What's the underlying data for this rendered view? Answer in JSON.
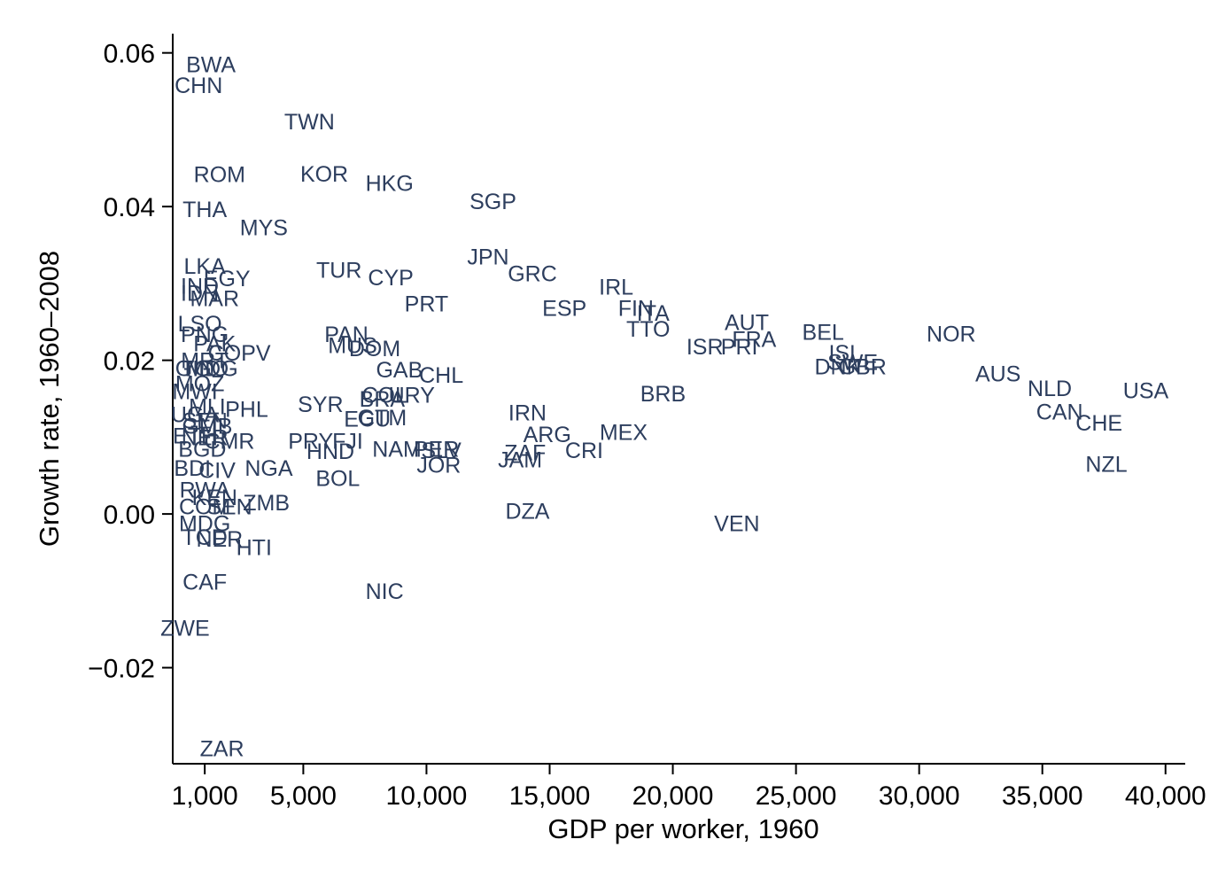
{
  "colors": {
    "marker_label": "#2d3e5e",
    "axis": "#000000"
  },
  "chart_data": {
    "type": "scatter",
    "marker": "country-code-labels",
    "xlabel": "GDP per worker, 1960",
    "ylabel": "Growth rate, 1960–2008",
    "xlim": [
      -300,
      40800
    ],
    "ylim": [
      -0.0325,
      0.0625
    ],
    "xticks": [
      1000,
      5000,
      10000,
      15000,
      20000,
      25000,
      30000,
      35000,
      40000
    ],
    "xtick_labels": [
      "1,000",
      "5,000",
      "10,000",
      "15,000",
      "20,000",
      "25,000",
      "30,000",
      "35,000",
      "40,000"
    ],
    "yticks": [
      -0.02,
      0.0,
      0.02,
      0.04,
      0.06
    ],
    "ytick_labels": [
      "−0.02",
      "0.00",
      "0.02",
      "0.04",
      "0.06"
    ],
    "grid": false,
    "legend": false,
    "points": [
      {
        "label": "BWA",
        "x": 1250,
        "y": 0.0585
      },
      {
        "label": "CHN",
        "x": 750,
        "y": 0.0558
      },
      {
        "label": "TWN",
        "x": 5250,
        "y": 0.0511
      },
      {
        "label": "ROM",
        "x": 1600,
        "y": 0.0442
      },
      {
        "label": "KOR",
        "x": 5850,
        "y": 0.0443
      },
      {
        "label": "HKG",
        "x": 8500,
        "y": 0.0431
      },
      {
        "label": "SGP",
        "x": 12700,
        "y": 0.0407
      },
      {
        "label": "THA",
        "x": 1000,
        "y": 0.0397
      },
      {
        "label": "MYS",
        "x": 3400,
        "y": 0.0373
      },
      {
        "label": "JPN",
        "x": 12500,
        "y": 0.0335
      },
      {
        "label": "LKA",
        "x": 1000,
        "y": 0.0323
      },
      {
        "label": "TUR",
        "x": 6450,
        "y": 0.0318
      },
      {
        "label": "GRC",
        "x": 14300,
        "y": 0.0313
      },
      {
        "label": "CYP",
        "x": 8550,
        "y": 0.0308
      },
      {
        "label": "IRL",
        "x": 17700,
        "y": 0.0296
      },
      {
        "label": "EGY",
        "x": 1900,
        "y": 0.0307
      },
      {
        "label": "IND",
        "x": 800,
        "y": 0.0297
      },
      {
        "label": "IDN",
        "x": 800,
        "y": 0.0288
      },
      {
        "label": "MAR",
        "x": 1400,
        "y": 0.0281
      },
      {
        "label": "PRT",
        "x": 10000,
        "y": 0.0274
      },
      {
        "label": "ESP",
        "x": 15600,
        "y": 0.0268
      },
      {
        "label": "FIN",
        "x": 18500,
        "y": 0.0268
      },
      {
        "label": "ITA",
        "x": 19200,
        "y": 0.0262
      },
      {
        "label": "LSO",
        "x": 800,
        "y": 0.0248
      },
      {
        "label": "AUT",
        "x": 23000,
        "y": 0.025
      },
      {
        "label": "PNG",
        "x": 1000,
        "y": 0.0234
      },
      {
        "label": "PAN",
        "x": 6750,
        "y": 0.0234
      },
      {
        "label": "TTO",
        "x": 19000,
        "y": 0.0241
      },
      {
        "label": "BEL",
        "x": 26100,
        "y": 0.0237
      },
      {
        "label": "NOR",
        "x": 31300,
        "y": 0.0235
      },
      {
        "label": "FRA",
        "x": 23300,
        "y": 0.0228
      },
      {
        "label": "PAK",
        "x": 1400,
        "y": 0.0222
      },
      {
        "label": "MUS",
        "x": 7000,
        "y": 0.022
      },
      {
        "label": "DOM",
        "x": 7900,
        "y": 0.0216
      },
      {
        "label": "COPV",
        "x": 2400,
        "y": 0.021
      },
      {
        "label": "ISR",
        "x": 21300,
        "y": 0.0218
      },
      {
        "label": "PRI",
        "x": 22700,
        "y": 0.0218
      },
      {
        "label": "ISL",
        "x": 27000,
        "y": 0.021
      },
      {
        "label": "SWE",
        "x": 27300,
        "y": 0.0198
      },
      {
        "label": "DNK",
        "x": 26700,
        "y": 0.0192
      },
      {
        "label": "GBR",
        "x": 27700,
        "y": 0.0192
      },
      {
        "label": "MRT",
        "x": 1000,
        "y": 0.02
      },
      {
        "label": "GAB",
        "x": 8900,
        "y": 0.0188
      },
      {
        "label": "GIN",
        "x": 600,
        "y": 0.019
      },
      {
        "label": "TGO",
        "x": 1000,
        "y": 0.019
      },
      {
        "label": "MDG",
        "x": 1300,
        "y": 0.019
      },
      {
        "label": "CHL",
        "x": 10600,
        "y": 0.0181
      },
      {
        "label": "AUS",
        "x": 33200,
        "y": 0.0183
      },
      {
        "label": "MOZ",
        "x": 800,
        "y": 0.017
      },
      {
        "label": "NLD",
        "x": 35300,
        "y": 0.0164
      },
      {
        "label": "USA",
        "x": 39200,
        "y": 0.0161
      },
      {
        "label": "MWI",
        "x": 600,
        "y": 0.016
      },
      {
        "label": "BRB",
        "x": 19600,
        "y": 0.0157
      },
      {
        "label": "COL",
        "x": 8300,
        "y": 0.0155
      },
      {
        "label": "URY",
        "x": 9400,
        "y": 0.0155
      },
      {
        "label": "BRA",
        "x": 8200,
        "y": 0.015
      },
      {
        "label": "SYR",
        "x": 5700,
        "y": 0.0143
      },
      {
        "label": "MLI",
        "x": 1100,
        "y": 0.014
      },
      {
        "label": "PHL",
        "x": 2700,
        "y": 0.0137
      },
      {
        "label": "IRN",
        "x": 14100,
        "y": 0.0132
      },
      {
        "label": "CAN",
        "x": 35700,
        "y": 0.0133
      },
      {
        "label": "CHE",
        "x": 37300,
        "y": 0.0119
      },
      {
        "label": "GTM",
        "x": 8200,
        "y": 0.0126
      },
      {
        "label": "ECU",
        "x": 7600,
        "y": 0.0124
      },
      {
        "label": "UGA",
        "x": 600,
        "y": 0.013
      },
      {
        "label": "SEN",
        "x": 1000,
        "y": 0.0122
      },
      {
        "label": "GMB",
        "x": 1100,
        "y": 0.0115
      },
      {
        "label": "MEX",
        "x": 18000,
        "y": 0.0107
      },
      {
        "label": "ARG",
        "x": 14900,
        "y": 0.0104
      },
      {
        "label": "ETH",
        "x": 600,
        "y": 0.0102
      },
      {
        "label": "NER",
        "x": 1000,
        "y": 0.01
      },
      {
        "label": "CMR",
        "x": 2000,
        "y": 0.0095
      },
      {
        "label": "PRY",
        "x": 5300,
        "y": 0.0095
      },
      {
        "label": "FJI",
        "x": 6800,
        "y": 0.0095
      },
      {
        "label": "BGD",
        "x": 900,
        "y": 0.0085
      },
      {
        "label": "HND",
        "x": 6100,
        "y": 0.0082
      },
      {
        "label": "NAM",
        "x": 8800,
        "y": 0.0085
      },
      {
        "label": "PER",
        "x": 10400,
        "y": 0.0085
      },
      {
        "label": "SLV",
        "x": 10600,
        "y": 0.0083
      },
      {
        "label": "CRI",
        "x": 16400,
        "y": 0.0083
      },
      {
        "label": "ZAF",
        "x": 14000,
        "y": 0.008
      },
      {
        "label": "JAM",
        "x": 13800,
        "y": 0.0071
      },
      {
        "label": "BDI",
        "x": 500,
        "y": 0.006
      },
      {
        "label": "CIV",
        "x": 1500,
        "y": 0.0057
      },
      {
        "label": "NGA",
        "x": 3600,
        "y": 0.006
      },
      {
        "label": "JOR",
        "x": 10500,
        "y": 0.0064
      },
      {
        "label": "NZL",
        "x": 37600,
        "y": 0.0065
      },
      {
        "label": "BOL",
        "x": 6400,
        "y": 0.0047
      },
      {
        "label": "RWA",
        "x": 1000,
        "y": 0.0032
      },
      {
        "label": "KEN",
        "x": 1400,
        "y": 0.0022
      },
      {
        "label": "ZMB",
        "x": 3500,
        "y": 0.0015
      },
      {
        "label": "COM",
        "x": 1000,
        "y": 0.001
      },
      {
        "label": "SEN",
        "x": 2000,
        "y": 0.001
      },
      {
        "label": "DZA",
        "x": 14100,
        "y": 0.0004
      },
      {
        "label": "VEN",
        "x": 22600,
        "y": -0.0012
      },
      {
        "label": "MDG",
        "x": 1000,
        "y": -0.0012
      },
      {
        "label": "TCD",
        "x": 1000,
        "y": -0.003
      },
      {
        "label": "NER",
        "x": 1600,
        "y": -0.0032
      },
      {
        "label": "HTI",
        "x": 3000,
        "y": -0.0043
      },
      {
        "label": "CAF",
        "x": 1000,
        "y": -0.0088
      },
      {
        "label": "NIC",
        "x": 8300,
        "y": -0.01
      },
      {
        "label": "ZWE",
        "x": 200,
        "y": -0.0148
      },
      {
        "label": "ZAR",
        "x": 1700,
        "y": -0.0305
      }
    ]
  }
}
